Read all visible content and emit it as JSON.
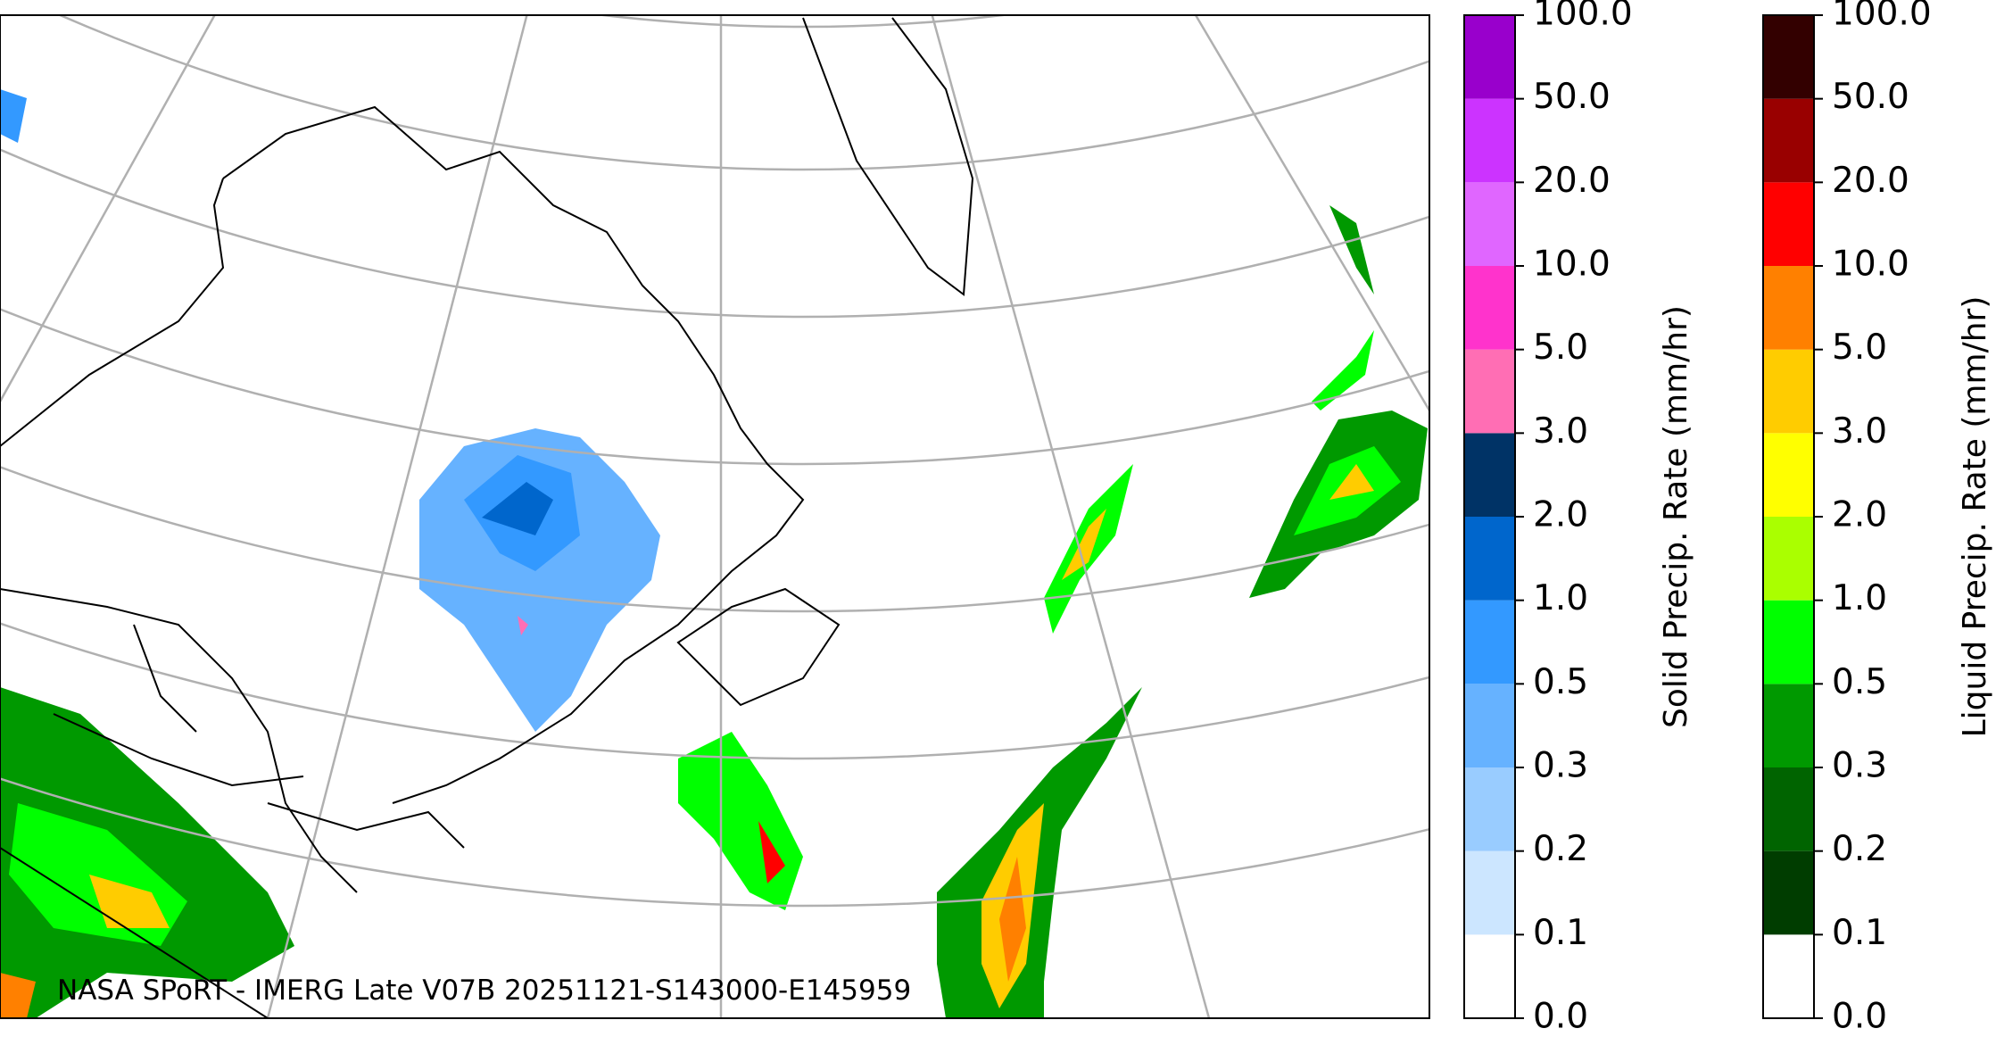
{
  "map": {
    "attribution": "NASA SPoRT - IMERG Late V07B 20251121-S143000-E145959"
  },
  "colorbars": [
    {
      "label": "Solid Precip. Rate (mm/hr)",
      "ticks": [
        "0.0",
        "0.1",
        "0.2",
        "0.3",
        "0.5",
        "1.0",
        "2.0",
        "3.0",
        "5.0",
        "10.0",
        "20.0",
        "50.0",
        "100.0"
      ],
      "colors": [
        "#ffffff",
        "#cce6ff",
        "#99ccff",
        "#66b2ff",
        "#3399ff",
        "#0066cc",
        "#003366",
        "#ff6eb4",
        "#ff33cc",
        "#e066ff",
        "#cc33ff",
        "#9900cc"
      ]
    },
    {
      "label": "Liquid Precip. Rate (mm/hr)",
      "ticks": [
        "0.0",
        "0.1",
        "0.2",
        "0.3",
        "0.5",
        "1.0",
        "2.0",
        "3.0",
        "5.0",
        "10.0",
        "20.0",
        "50.0",
        "100.0"
      ],
      "colors": [
        "#ffffff",
        "#003d00",
        "#006400",
        "#009900",
        "#00ff00",
        "#aaff00",
        "#ffff00",
        "#ffcc00",
        "#ff8000",
        "#ff0000",
        "#990000",
        "#330000"
      ]
    }
  ]
}
